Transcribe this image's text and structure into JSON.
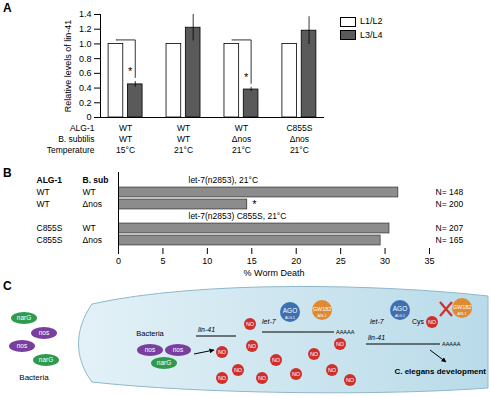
{
  "chart_data": [
    {
      "type": "bar",
      "title": "A",
      "y_label": "Relative levels of lin-41",
      "series": [
        {
          "name": "L1/L2",
          "color": "#ffffff",
          "values": [
            1,
            1,
            1,
            1
          ],
          "errors": [
            0,
            0,
            0,
            0
          ]
        },
        {
          "name": "L3/L4",
          "color": "#5a5a5a",
          "values": [
            0.45,
            1.22,
            0.38,
            1.18
          ],
          "errors": [
            0.04,
            0.18,
            0.03,
            0.19
          ]
        }
      ],
      "table": {
        "rows": [
          {
            "label": "ALG-1",
            "values": [
              "WT",
              "WT",
              "WT",
              "C855S"
            ]
          },
          {
            "label": "B. subtilis",
            "values": [
              "WT",
              "WT",
              "Δnos",
              "Δnos"
            ]
          },
          {
            "label": "Temperature",
            "values": [
              "15°C",
              "21°C",
              "21°C",
              "21°C"
            ]
          }
        ]
      },
      "ylim": [
        0,
        1.4
      ],
      "yticks": [
        0,
        0.2,
        0.4,
        0.6,
        0.8,
        {
          "value": 1,
          "label": "1.0"
        },
        1.2,
        1.4
      ],
      "annotations": [
        {
          "index": 0,
          "text": "*"
        },
        {
          "index": 2,
          "text": "*"
        }
      ]
    },
    {
      "type": "bar",
      "title": "B",
      "orientation": "horizontal",
      "columns": [
        "ALG-1",
        "B. sub"
      ],
      "rows": [
        [
          "WT",
          "WT"
        ],
        [
          "WT",
          "Δnos"
        ],
        [
          "C855S",
          "WT"
        ],
        [
          "C855S",
          "Δnos"
        ]
      ],
      "values": [
        31.5,
        14.5,
        30.5,
        29.5
      ],
      "n_labels": [
        "N= 148",
        "N= 200",
        "N= 207",
        "N= 165"
      ],
      "group_titles": [
        "let-7(n2853), 21°C",
        "let-7(n2853) C855S, 21°C"
      ],
      "color": "#8c8c8c",
      "x_label": "% Worm Death",
      "xlim": [
        0,
        35
      ],
      "xticks": [
        0,
        5,
        10,
        15,
        20,
        25,
        30,
        35
      ],
      "annotations": [
        {
          "index": 1,
          "text": "*"
        }
      ]
    }
  ],
  "diagram": {
    "title": "C",
    "outside_label": "Bacteria",
    "outside_bacteria": [
      "narG",
      "nos",
      "nos",
      "narG"
    ],
    "inside_label": "Bacteria",
    "inside_bacteria": [
      "nos",
      "nos",
      "narG"
    ],
    "molecule": "NO",
    "ago": "AGO",
    "ago_sub": "ALG-1",
    "gw182": "GW182",
    "gw182_sub": "AIN-1",
    "mirna": "let-7",
    "mrna": "lin-41",
    "polya": "AAAAA",
    "cys": "Cys",
    "outcome": "C. elegans development"
  }
}
